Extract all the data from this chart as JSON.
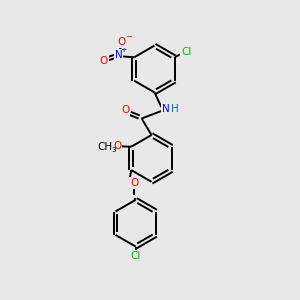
{
  "bg_color": "#e8e8e8",
  "bond_color": "#000000",
  "figsize": [
    3.0,
    3.0
  ],
  "dpi": 100,
  "atom_colors": {
    "O": "#ff0000",
    "N": "#0000ff",
    "Cl": "#00bb00",
    "H": "#007777",
    "C": "#000000"
  },
  "bond_lw": 1.4,
  "font_size": 7.5
}
